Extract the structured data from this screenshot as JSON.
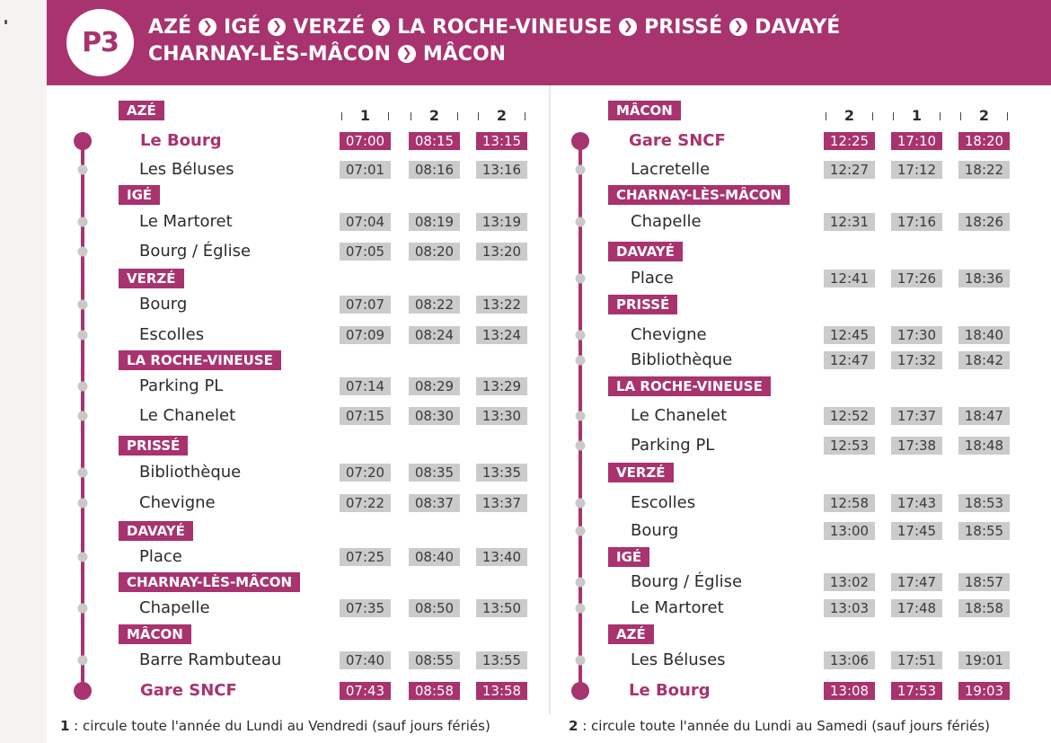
{
  "route": {
    "code": "P3",
    "line1": [
      "AZÉ",
      "IGÉ",
      "VERZÉ",
      "LA ROCHE-VINEUSE",
      "PRISSÉ",
      "DAVAYÉ"
    ],
    "line2": [
      "CHARNAY-LÈS-MÂCON",
      "MÂCON"
    ]
  },
  "colors": {
    "accent": "#a8336e",
    "time_bg": "#cbcbcb"
  },
  "outbound": {
    "columns": [
      "1",
      "2",
      "2"
    ],
    "entries": [
      {
        "type": "town",
        "name": "AZÉ"
      },
      {
        "type": "stop",
        "name": "Le Bourg",
        "terminal": true,
        "times": [
          "07:00",
          "08:15",
          "13:15"
        ]
      },
      {
        "type": "stop",
        "name": "Les Béluses",
        "times": [
          "07:01",
          "08:16",
          "13:16"
        ]
      },
      {
        "type": "town",
        "name": "IGÉ"
      },
      {
        "type": "stop",
        "name": "Le Martoret",
        "times": [
          "07:04",
          "08:19",
          "13:19"
        ]
      },
      {
        "type": "stop",
        "name": "Bourg / Église",
        "times": [
          "07:05",
          "08:20",
          "13:20"
        ]
      },
      {
        "type": "town",
        "name": "VERZÉ"
      },
      {
        "type": "stop",
        "name": "Bourg",
        "times": [
          "07:07",
          "08:22",
          "13:22"
        ]
      },
      {
        "type": "stop",
        "name": "Escolles",
        "times": [
          "07:09",
          "08:24",
          "13:24"
        ]
      },
      {
        "type": "town",
        "name": "LA ROCHE-VINEUSE"
      },
      {
        "type": "stop",
        "name": "Parking PL",
        "times": [
          "07:14",
          "08:29",
          "13:29"
        ]
      },
      {
        "type": "stop",
        "name": "Le Chanelet",
        "times": [
          "07:15",
          "08:30",
          "13:30"
        ]
      },
      {
        "type": "town",
        "name": "PRISSÉ"
      },
      {
        "type": "stop",
        "name": "Bibliothèque",
        "times": [
          "07:20",
          "08:35",
          "13:35"
        ]
      },
      {
        "type": "stop",
        "name": "Chevigne",
        "times": [
          "07:22",
          "08:37",
          "13:37"
        ]
      },
      {
        "type": "town",
        "name": "DAVAYÉ"
      },
      {
        "type": "stop",
        "name": "Place",
        "times": [
          "07:25",
          "08:40",
          "13:40"
        ]
      },
      {
        "type": "town",
        "name": "CHARNAY-LÈS-MÂCON"
      },
      {
        "type": "stop",
        "name": "Chapelle",
        "times": [
          "07:35",
          "08:50",
          "13:50"
        ]
      },
      {
        "type": "town",
        "name": "MÂCON"
      },
      {
        "type": "stop",
        "name": "Barre Rambuteau",
        "times": [
          "07:40",
          "08:55",
          "13:55"
        ]
      },
      {
        "type": "stop",
        "name": "Gare SNCF",
        "terminal": true,
        "times": [
          "07:43",
          "08:58",
          "13:58"
        ]
      }
    ]
  },
  "inbound": {
    "columns": [
      "2",
      "1",
      "2"
    ],
    "entries": [
      {
        "type": "town",
        "name": "MÂCON"
      },
      {
        "type": "stop",
        "name": "Gare SNCF",
        "terminal": true,
        "times": [
          "12:25",
          "17:10",
          "18:20"
        ]
      },
      {
        "type": "stop",
        "name": "Lacretelle",
        "times": [
          "12:27",
          "17:12",
          "18:22"
        ]
      },
      {
        "type": "town",
        "name": "CHARNAY-LÈS-MÂCON"
      },
      {
        "type": "stop",
        "name": "Chapelle",
        "times": [
          "12:31",
          "17:16",
          "18:26"
        ]
      },
      {
        "type": "town",
        "name": "DAVAYÉ"
      },
      {
        "type": "stop",
        "name": "Place",
        "times": [
          "12:41",
          "17:26",
          "18:36"
        ]
      },
      {
        "type": "town",
        "name": "PRISSÉ"
      },
      {
        "type": "stop",
        "name": "Chevigne",
        "times": [
          "12:45",
          "17:30",
          "18:40"
        ]
      },
      {
        "type": "stop",
        "name": "Bibliothèque",
        "times": [
          "12:47",
          "17:32",
          "18:42"
        ]
      },
      {
        "type": "town",
        "name": "LA ROCHE-VINEUSE"
      },
      {
        "type": "stop",
        "name": "Le Chanelet",
        "times": [
          "12:52",
          "17:37",
          "18:47"
        ]
      },
      {
        "type": "stop",
        "name": "Parking PL",
        "times": [
          "12:53",
          "17:38",
          "18:48"
        ]
      },
      {
        "type": "town",
        "name": "VERZÉ"
      },
      {
        "type": "stop",
        "name": "Escolles",
        "times": [
          "12:58",
          "17:43",
          "18:53"
        ]
      },
      {
        "type": "stop",
        "name": "Bourg",
        "times": [
          "13:00",
          "17:45",
          "18:55"
        ]
      },
      {
        "type": "town",
        "name": "IGÉ"
      },
      {
        "type": "stop",
        "name": "Bourg / Église",
        "times": [
          "13:02",
          "17:47",
          "18:57"
        ]
      },
      {
        "type": "stop",
        "name": "Le Martoret",
        "times": [
          "13:03",
          "17:48",
          "18:58"
        ]
      },
      {
        "type": "town",
        "name": "AZÉ"
      },
      {
        "type": "stop",
        "name": "Les Béluses",
        "times": [
          "13:06",
          "17:51",
          "19:01"
        ]
      },
      {
        "type": "stop",
        "name": "Le Bourg",
        "terminal": true,
        "times": [
          "13:08",
          "17:53",
          "19:03"
        ]
      }
    ]
  },
  "footnotes": [
    {
      "key": "1",
      "text": " : circule toute l'année du Lundi au Vendredi (sauf jours fériés)"
    },
    {
      "key": "2",
      "text": " : circule toute l'année du Lundi au Samedi (sauf jours fériés)"
    }
  ]
}
